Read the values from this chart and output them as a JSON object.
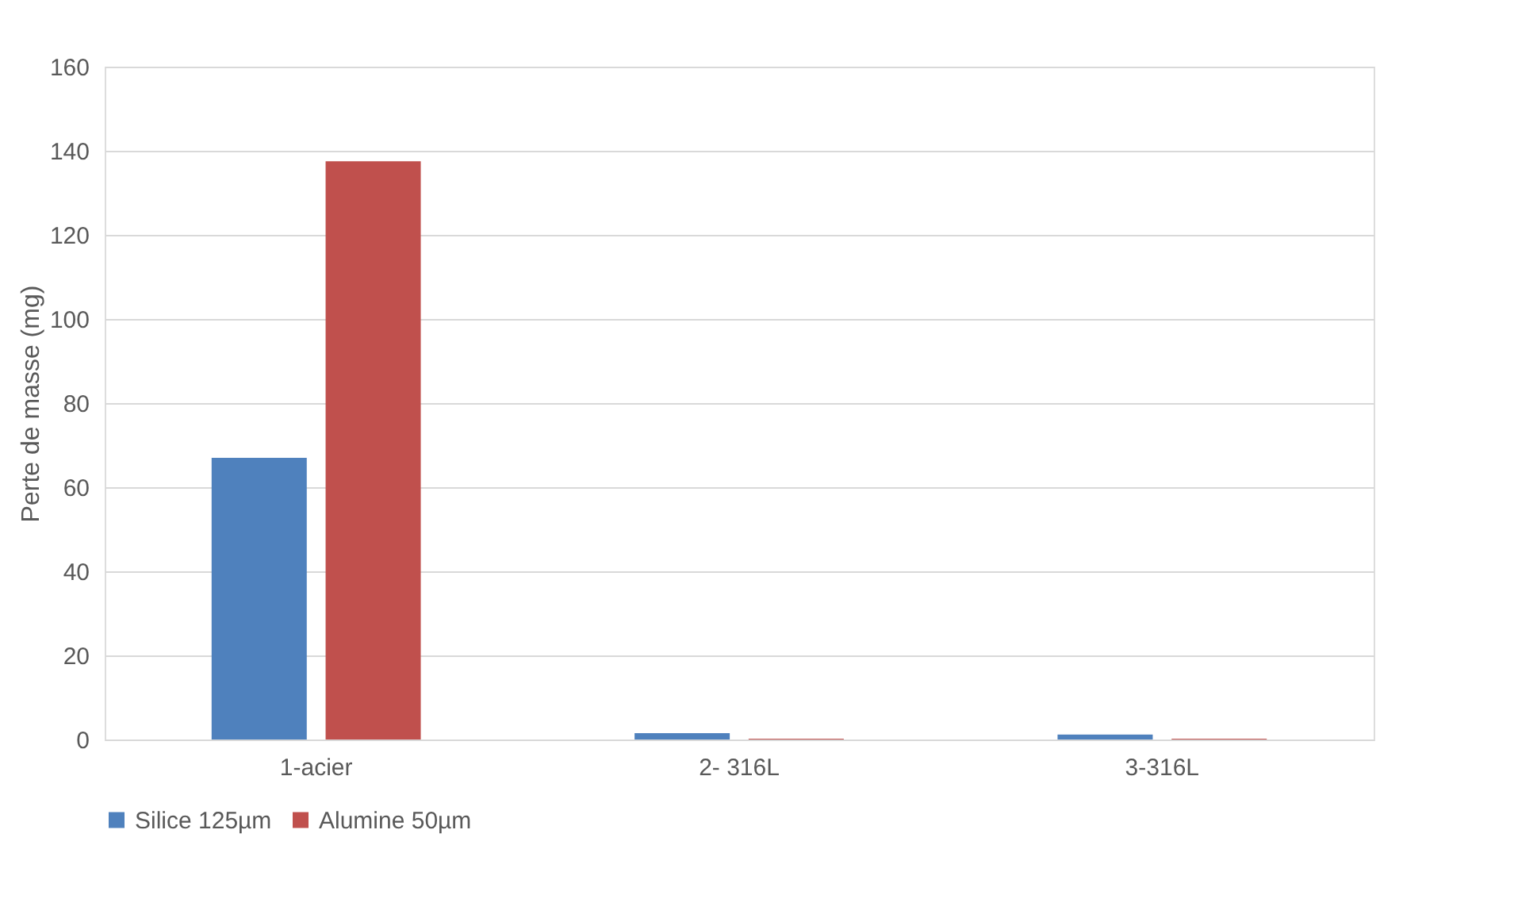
{
  "chart_data": {
    "type": "bar",
    "ylabel": "Perte de masse (mg)",
    "categories": [
      "1-acier",
      "2- 316L",
      "3-316L"
    ],
    "series": [
      {
        "name": "Silice 125µm",
        "color": "#4f81bd",
        "values": [
          67,
          1.5,
          1.2
        ]
      },
      {
        "name": "Alumine 50µm",
        "color": "#c0504d",
        "values": [
          137.5,
          0.2,
          0.2
        ]
      }
    ],
    "ylim": [
      0,
      160
    ],
    "yticks": [
      0,
      20,
      40,
      60,
      80,
      100,
      120,
      140,
      160
    ],
    "grid": "y",
    "legend": "bottom"
  }
}
